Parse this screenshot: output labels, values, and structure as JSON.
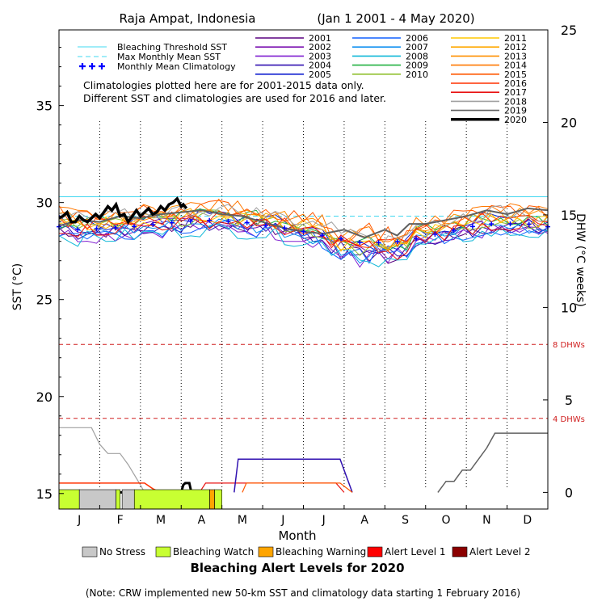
{
  "chart_data": {
    "type": "line",
    "title_location": "Raja Ampat, Indonesia",
    "title_range": "(Jan 1 2001 - 4 May 2020)",
    "ylabel": "SST (°C)",
    "y2label": "DHW (°C weeks)",
    "xlabel": "Month",
    "ylim": [
      14.2,
      38.9
    ],
    "y2lim": [
      -0.9,
      25
    ],
    "yticks": [
      "15",
      "20",
      "25",
      "30",
      "35"
    ],
    "y2ticks": [
      "0",
      "5",
      "10",
      "15",
      "20",
      "25"
    ],
    "months": [
      "J",
      "F",
      "M",
      "A",
      "M",
      "J",
      "J",
      "A",
      "S",
      "O",
      "N",
      "D"
    ],
    "grid": "dotted vertical month lines",
    "notes": [
      "Climatologies plotted here are for 2001-2015 data only.",
      "Different SST and climatologies are used for 2016 and later."
    ],
    "legend_reference": [
      {
        "name": "Bleaching Threshold SST",
        "color": "#40d8f0",
        "style": "solid"
      },
      {
        "name": "Max Monthly Mean SST",
        "color": "#40d8f0",
        "style": "dashed"
      },
      {
        "name": "Monthly Mean Climatology",
        "color": "#0000ff",
        "style": "plus"
      }
    ],
    "bleaching_threshold": 30.3,
    "max_monthly_mean": 29.3,
    "climatology": [
      28.6,
      28.7,
      28.9,
      29.1,
      29.0,
      28.7,
      28.3,
      27.9,
      28.0,
      28.5,
      28.9,
      28.9
    ],
    "dhw_thresholds": [
      {
        "value": 4,
        "label": "4 DHWs"
      },
      {
        "value": 8,
        "label": "8 DHWs"
      }
    ],
    "years": [
      {
        "name": "2001",
        "color": "#5a0080"
      },
      {
        "name": "2002",
        "color": "#7a10b0"
      },
      {
        "name": "2003",
        "color": "#8020d0"
      },
      {
        "name": "2004",
        "color": "#3010b0"
      },
      {
        "name": "2005",
        "color": "#1020d0"
      },
      {
        "name": "2006",
        "color": "#1060ff"
      },
      {
        "name": "2007",
        "color": "#1090f0"
      },
      {
        "name": "2008",
        "color": "#10b8d8"
      },
      {
        "name": "2009",
        "color": "#20b040"
      },
      {
        "name": "2010",
        "color": "#90c030"
      },
      {
        "name": "2011",
        "color": "#ffc800"
      },
      {
        "name": "2012",
        "color": "#ffa800"
      },
      {
        "name": "2013",
        "color": "#ff9000"
      },
      {
        "name": "2014",
        "color": "#ff7800"
      },
      {
        "name": "2015",
        "color": "#ff5800"
      },
      {
        "name": "2016",
        "color": "#ff3000"
      },
      {
        "name": "2017",
        "color": "#e81010"
      },
      {
        "name": "2018",
        "color": "#a0a0a0"
      },
      {
        "name": "2019",
        "color": "#606060"
      },
      {
        "name": "2020",
        "color": "#000000",
        "bold": true
      }
    ],
    "sst_2020": [
      [
        0,
        29.2
      ],
      [
        0.1,
        29.3
      ],
      [
        0.2,
        29.5
      ],
      [
        0.3,
        29.0
      ],
      [
        0.4,
        29.0
      ],
      [
        0.5,
        29.3
      ],
      [
        0.6,
        29.1
      ],
      [
        0.7,
        29.0
      ],
      [
        0.8,
        29.2
      ],
      [
        0.9,
        29.4
      ],
      [
        1.0,
        29.2
      ],
      [
        1.1,
        29.5
      ],
      [
        1.2,
        29.8
      ],
      [
        1.3,
        29.6
      ],
      [
        1.4,
        29.9
      ],
      [
        1.5,
        29.3
      ],
      [
        1.6,
        29.4
      ],
      [
        1.7,
        29.0
      ],
      [
        1.8,
        29.3
      ],
      [
        1.9,
        29.6
      ],
      [
        2.0,
        29.3
      ],
      [
        2.1,
        29.5
      ],
      [
        2.2,
        29.7
      ],
      [
        2.3,
        29.4
      ],
      [
        2.4,
        29.5
      ],
      [
        2.5,
        29.8
      ],
      [
        2.6,
        29.6
      ],
      [
        2.7,
        29.9
      ],
      [
        2.8,
        30.0
      ],
      [
        2.9,
        30.2
      ],
      [
        3.0,
        29.8
      ],
      [
        3.05,
        29.9
      ],
      [
        3.13,
        29.7
      ]
    ],
    "sst_2019": [
      [
        0,
        28.8
      ],
      [
        0.5,
        29.1
      ],
      [
        1,
        29.0
      ],
      [
        1.5,
        29.3
      ],
      [
        2,
        29.2
      ],
      [
        2.5,
        29.4
      ],
      [
        3,
        29.5
      ],
      [
        3.5,
        29.6
      ],
      [
        4,
        29.4
      ],
      [
        4.5,
        29.3
      ],
      [
        5,
        29.0
      ],
      [
        5.5,
        28.7
      ],
      [
        6,
        28.5
      ],
      [
        6.5,
        28.4
      ],
      [
        7,
        28.6
      ],
      [
        7.5,
        28.2
      ],
      [
        8,
        28.6
      ],
      [
        8.3,
        28.3
      ],
      [
        8.6,
        28.9
      ],
      [
        9,
        28.9
      ],
      [
        9.5,
        29.1
      ],
      [
        10,
        29.3
      ],
      [
        10.5,
        29.6
      ],
      [
        11,
        29.4
      ],
      [
        11.5,
        29.7
      ],
      [
        12,
        29.6
      ]
    ],
    "dhw_2018": [
      [
        0,
        3.5
      ],
      [
        0.8,
        3.5
      ],
      [
        1.0,
        2.6
      ],
      [
        1.2,
        2.1
      ],
      [
        1.5,
        2.1
      ],
      [
        1.7,
        1.5
      ],
      [
        2.0,
        0.4
      ],
      [
        2.1,
        0
      ]
    ],
    "dhw_2016": [
      [
        0,
        0.5
      ],
      [
        2.1,
        0.5
      ],
      [
        2.3,
        0.2
      ],
      [
        2.5,
        0
      ]
    ],
    "dhw_2017": [
      [
        3.45,
        0
      ],
      [
        3.6,
        0.5
      ],
      [
        6.8,
        0.5
      ],
      [
        7.0,
        0
      ]
    ],
    "dhw_2004": [
      [
        4.3,
        0
      ],
      [
        4.4,
        1.8
      ],
      [
        6.9,
        1.8
      ],
      [
        7.2,
        0
      ]
    ],
    "dhw_2015": [
      [
        4.5,
        0
      ],
      [
        4.6,
        0.5
      ],
      [
        6.9,
        0.5
      ],
      [
        7.2,
        0
      ]
    ],
    "dhw_2019": [
      [
        9.3,
        0
      ],
      [
        9.5,
        0.6
      ],
      [
        9.7,
        0.6
      ],
      [
        9.9,
        1.2
      ],
      [
        10.1,
        1.2
      ],
      [
        10.3,
        1.8
      ],
      [
        10.5,
        2.4
      ],
      [
        10.7,
        3.2
      ],
      [
        12,
        3.2
      ]
    ],
    "dhw_2020": [
      [
        0,
        0
      ],
      [
        3.0,
        0
      ],
      [
        3.05,
        0.4
      ],
      [
        3.1,
        0.5
      ],
      [
        3.2,
        0.5
      ],
      [
        3.25,
        0
      ]
    ],
    "alert_levels": [
      {
        "name": "No Stress",
        "color": "#c8c8c8"
      },
      {
        "name": "Bleaching Watch",
        "color": "#c8ff32"
      },
      {
        "name": "Bleaching Warning",
        "color": "#ffa500"
      },
      {
        "name": "Alert Level 1",
        "color": "#ff0000"
      },
      {
        "name": "Alert Level 2",
        "color": "#8b0000"
      }
    ],
    "alert_bar_2020": [
      [
        0,
        0.5,
        "Bleaching Watch"
      ],
      [
        0.5,
        1.4,
        "No Stress"
      ],
      [
        1.4,
        1.5,
        "Bleaching Watch"
      ],
      [
        1.55,
        1.85,
        "No Stress"
      ],
      [
        1.85,
        3.7,
        "Bleaching Watch"
      ],
      [
        3.7,
        3.82,
        "Bleaching Warning"
      ],
      [
        3.82,
        4.0,
        "Bleaching Watch"
      ]
    ],
    "alert_title": "Bleaching Alert Levels for 2020",
    "footnote": "(Note: CRW implemented new 50-km SST and climatology data starting 1 February 2016)"
  }
}
